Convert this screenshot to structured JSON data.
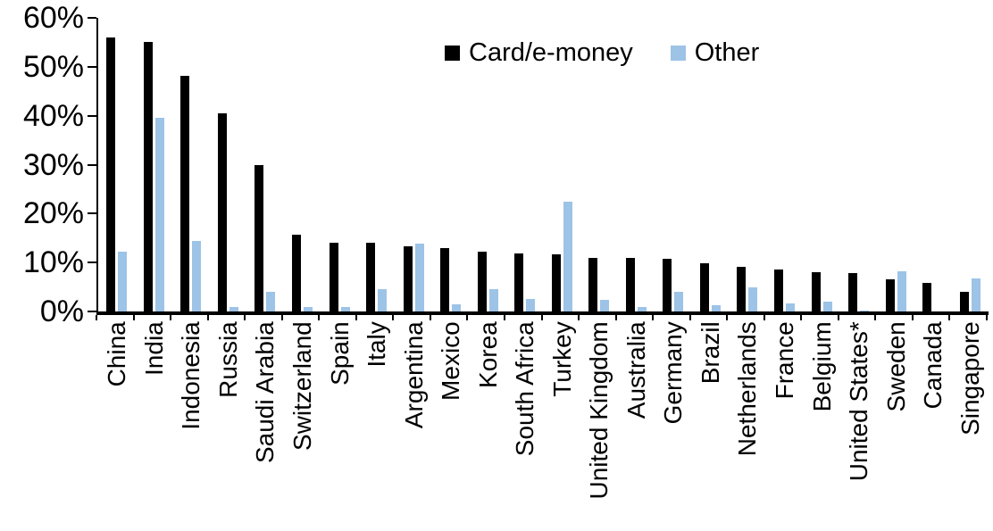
{
  "chart_data": {
    "type": "bar",
    "title": "",
    "xlabel": "",
    "ylabel": "",
    "ylim": [
      0,
      60
    ],
    "ytick_step": 10,
    "ytick_labels": [
      "0%",
      "10%",
      "20%",
      "30%",
      "40%",
      "50%",
      "60%"
    ],
    "grid": false,
    "legend_position": "top-center",
    "categories": [
      "China",
      "India",
      "Indonesia",
      "Russia",
      "Saudi Arabia",
      "Switzerland",
      "Spain",
      "Italy",
      "Argentina",
      "Mexico",
      "Korea",
      "South Africa",
      "Turkey",
      "United Kingdom",
      "Australia",
      "Germany",
      "Brazil",
      "Netherlands",
      "France",
      "Belgium",
      "United States*",
      "Sweden",
      "Canada",
      "Singapore"
    ],
    "series": [
      {
        "name": "Card/e-money",
        "color": "#000000",
        "values": [
          56,
          55,
          48.2,
          40.5,
          29.9,
          15.6,
          14.1,
          14,
          13.4,
          12.9,
          12.2,
          11.8,
          11.6,
          11,
          10.9,
          10.7,
          9.9,
          9.1,
          8.6,
          8.1,
          7.9,
          6.5,
          5.9,
          4
        ]
      },
      {
        "name": "Other",
        "color": "#9DC3E6",
        "values": [
          12.3,
          39.6,
          14.5,
          1,
          4,
          0.9,
          1,
          4.6,
          13.8,
          1.4,
          4.5,
          2.5,
          22.5,
          2.4,
          1,
          4,
          1.2,
          5,
          1.6,
          2.1,
          0.2,
          8.2,
          0,
          6.8
        ]
      }
    ]
  },
  "colors": {
    "axis": "#000000",
    "background": "#FFFFFF",
    "card_emoney": "#000000",
    "other": "#9DC3E6"
  }
}
